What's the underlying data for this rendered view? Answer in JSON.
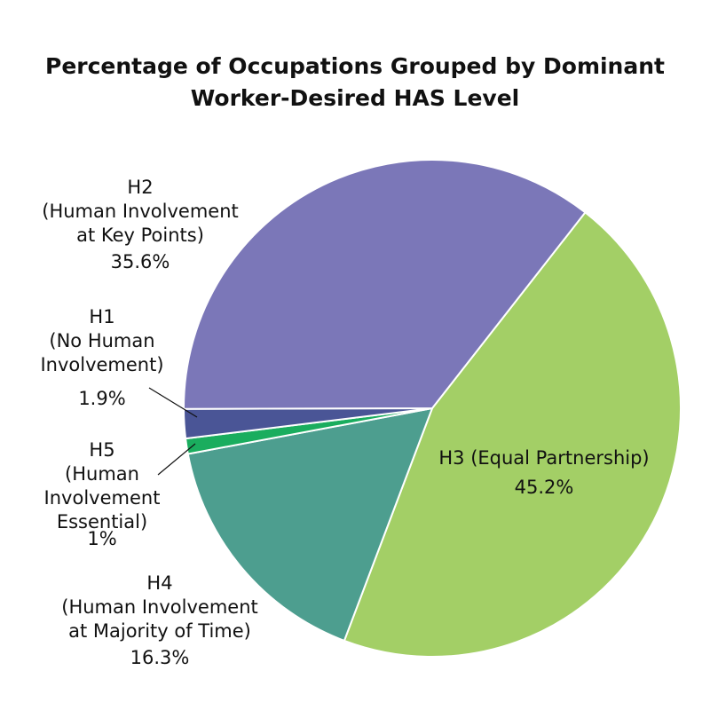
{
  "chart_data": {
    "type": "pie",
    "title": "Percentage of Occupations Grouped by Dominant Worker-Desired HAS Level",
    "categories": [
      "H3 (Equal Partnership)",
      "H4 (Human Involvement at Majority of Time)",
      "H5 (Human Involvement Essential)",
      "H1 (No Human Involvement)",
      "H2 (Human Involvement at Key Points)"
    ],
    "values": [
      45.2,
      16.3,
      1,
      1.9,
      35.6
    ],
    "value_labels": [
      "45.2%",
      "16.3%",
      "1%",
      "1.9%",
      "35.6%"
    ],
    "colors": [
      "#a3cf66",
      "#4d9e8f",
      "#1aad5e",
      "#4a5596",
      "#7b77b8"
    ]
  }
}
